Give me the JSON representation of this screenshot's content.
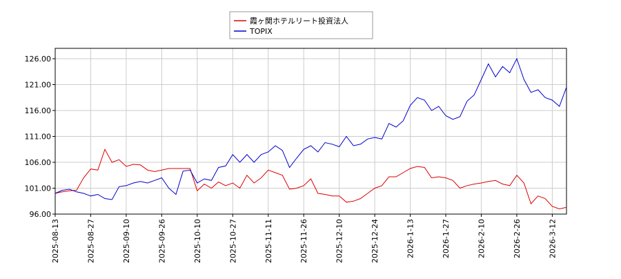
{
  "chart_data": {
    "type": "line",
    "categories": [
      "2025-08-13",
      null,
      null,
      null,
      null,
      "2025-08-27",
      null,
      null,
      null,
      null,
      "2025-09-10",
      null,
      null,
      null,
      null,
      "2025-09-26",
      null,
      null,
      null,
      null,
      "2025-10-10",
      null,
      null,
      null,
      null,
      "2025-10-27",
      null,
      null,
      null,
      null,
      "2025-11-11",
      null,
      null,
      null,
      null,
      "2025-11-26",
      null,
      null,
      null,
      null,
      "2025-12-10",
      null,
      null,
      null,
      null,
      "2025-12-24",
      null,
      null,
      null,
      null,
      "2026-1-13",
      null,
      null,
      null,
      null,
      "2026-1-27",
      null,
      null,
      null,
      null,
      "2026-2-10",
      null,
      null,
      null,
      null,
      "2026-2-26",
      null,
      null,
      null,
      null,
      "2026-3-12",
      null,
      null
    ],
    "series": [
      {
        "name": "霞ヶ関ホテルリート投資法人",
        "color": "#dd0000",
        "values": [
          100.0,
          100.3,
          100.5,
          100.6,
          103.0,
          104.7,
          104.5,
          108.5,
          106.0,
          106.5,
          105.2,
          105.6,
          105.5,
          104.5,
          104.2,
          104.5,
          104.8,
          104.8,
          104.8,
          104.8,
          100.5,
          101.8,
          101.0,
          102.2,
          101.5,
          102.0,
          101.0,
          103.5,
          102.0,
          103.0,
          104.5,
          104.0,
          103.5,
          100.8,
          101.0,
          101.5,
          102.8,
          100.0,
          99.8,
          99.5,
          99.5,
          98.3,
          98.5,
          99.0,
          100.0,
          101.0,
          101.5,
          103.2,
          103.2,
          104.0,
          104.8,
          105.2,
          105.0,
          103.0,
          103.2,
          103.0,
          102.5,
          101.0,
          101.5,
          101.8,
          102.0,
          102.3,
          102.5,
          101.8,
          101.5,
          103.5,
          102.0,
          98.0,
          99.5,
          99.0,
          97.5,
          97.0,
          97.3
        ]
      },
      {
        "name": "TOPIX",
        "color": "#0000cc",
        "values": [
          100.0,
          100.6,
          100.8,
          100.3,
          100.0,
          99.5,
          99.8,
          99.0,
          98.8,
          101.3,
          101.5,
          102.0,
          102.3,
          102.0,
          102.5,
          103.0,
          101.0,
          99.8,
          104.3,
          104.5,
          102.0,
          102.8,
          102.5,
          105.0,
          105.3,
          107.5,
          106.0,
          107.5,
          106.0,
          107.5,
          108.0,
          109.2,
          108.3,
          105.0,
          106.8,
          108.5,
          109.2,
          108.0,
          109.8,
          109.5,
          109.0,
          111.0,
          109.2,
          109.5,
          110.5,
          110.8,
          110.5,
          113.5,
          112.8,
          114.0,
          117.0,
          118.5,
          118.0,
          116.0,
          116.8,
          115.0,
          114.3,
          114.8,
          117.8,
          119.0,
          122.0,
          125.0,
          122.5,
          124.5,
          123.3,
          126.0,
          122.0,
          119.5,
          120.0,
          118.5,
          118.0,
          116.8,
          120.5
        ]
      }
    ],
    "ylim": [
      96,
      128
    ],
    "yticks": [
      {
        "value": 96,
        "label": "96.00"
      },
      {
        "value": 101,
        "label": "101.00"
      },
      {
        "value": 106,
        "label": "106.00"
      },
      {
        "value": 111,
        "label": "111.00"
      },
      {
        "value": 116,
        "label": "116.00"
      },
      {
        "value": 121,
        "label": "121.00"
      },
      {
        "value": 126,
        "label": "126.00"
      }
    ],
    "grid": true
  }
}
